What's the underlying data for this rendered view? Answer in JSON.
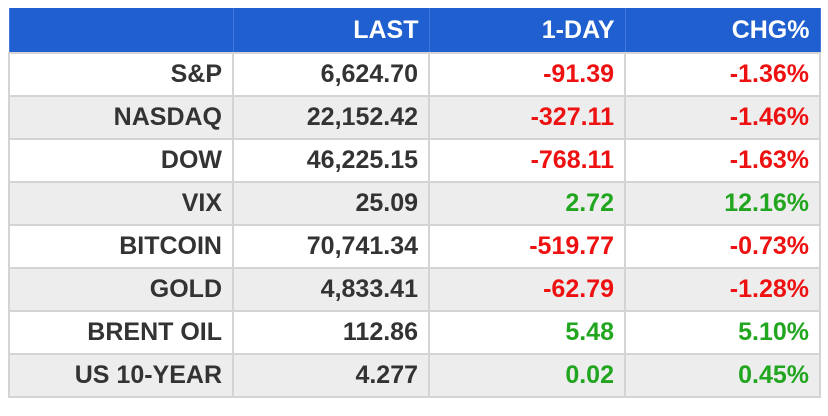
{
  "table": {
    "headers": [
      "",
      "LAST",
      "1-DAY",
      "CHG%"
    ],
    "rows": [
      {
        "name": "S&P",
        "last": "6,624.70",
        "day": "-91.39",
        "chg": "-1.36%",
        "dir": "neg"
      },
      {
        "name": "NASDAQ",
        "last": "22,152.42",
        "day": "-327.11",
        "chg": "-1.46%",
        "dir": "neg"
      },
      {
        "name": "DOW",
        "last": "46,225.15",
        "day": "-768.11",
        "chg": "-1.63%",
        "dir": "neg"
      },
      {
        "name": "VIX",
        "last": "25.09",
        "day": "2.72",
        "chg": "12.16%",
        "dir": "pos"
      },
      {
        "name": "BITCOIN",
        "last": "70,741.34",
        "day": "-519.77",
        "chg": "-0.73%",
        "dir": "neg"
      },
      {
        "name": "GOLD",
        "last": "4,833.41",
        "day": "-62.79",
        "chg": "-1.28%",
        "dir": "neg"
      },
      {
        "name": "BRENT OIL",
        "last": "112.86",
        "day": "5.48",
        "chg": "5.10%",
        "dir": "pos"
      },
      {
        "name": "US 10-YEAR",
        "last": "4.277",
        "day": "0.02",
        "chg": "0.45%",
        "dir": "pos"
      }
    ]
  },
  "colors": {
    "header_bg": "#1f5fcf",
    "negative": "#ee1111",
    "positive": "#22a51f",
    "zebra": "#ededed"
  }
}
